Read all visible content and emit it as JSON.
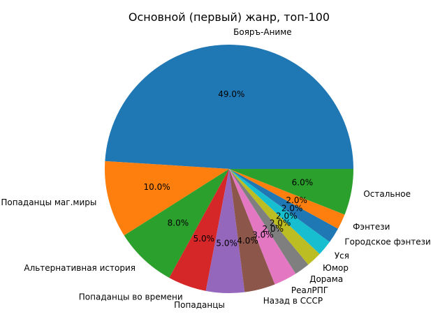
{
  "chart_data": {
    "type": "pie",
    "title": "Основной (первый) жанр, топ-100",
    "start_angle_deg": 0,
    "direction": "counterclockwise",
    "slices": [
      {
        "label": "Бояръ-Аниме",
        "value": 49.0,
        "pct_text": "49.0%",
        "color": "#1f77b4"
      },
      {
        "label": "Попаданцы маг.миры",
        "value": 10.0,
        "pct_text": "10.0%",
        "color": "#ff7f0e"
      },
      {
        "label": "Альтернативная история",
        "value": 8.0,
        "pct_text": "8.0%",
        "color": "#2ca02c"
      },
      {
        "label": "Попаданцы во времени",
        "value": 5.0,
        "pct_text": "5.0%",
        "color": "#d62728"
      },
      {
        "label": "Попаданцы",
        "value": 5.0,
        "pct_text": "5.0%",
        "color": "#9467bd"
      },
      {
        "label": "Назад в СССР",
        "value": 4.0,
        "pct_text": "4.0%",
        "color": "#8c564b"
      },
      {
        "label": "РеалРПГ",
        "value": 3.0,
        "pct_text": "3.0%",
        "color": "#e377c2"
      },
      {
        "label": "Дорама",
        "value": 2.0,
        "pct_text": "2.0%",
        "color": "#7f7f7f"
      },
      {
        "label": "Юмор",
        "value": 2.0,
        "pct_text": "2.0%",
        "color": "#bcbd22"
      },
      {
        "label": "Уся",
        "value": 2.0,
        "pct_text": "2.0%",
        "color": "#17becf"
      },
      {
        "label": "Городское фэнтези",
        "value": 2.0,
        "pct_text": "2.0%",
        "color": "#1f77b4"
      },
      {
        "label": "Фэнтези",
        "value": 2.0,
        "pct_text": "2.0%",
        "color": "#ff7f0e"
      },
      {
        "label": "Остальное",
        "value": 6.0,
        "pct_text": "6.0%",
        "color": "#2ca02c"
      }
    ]
  }
}
